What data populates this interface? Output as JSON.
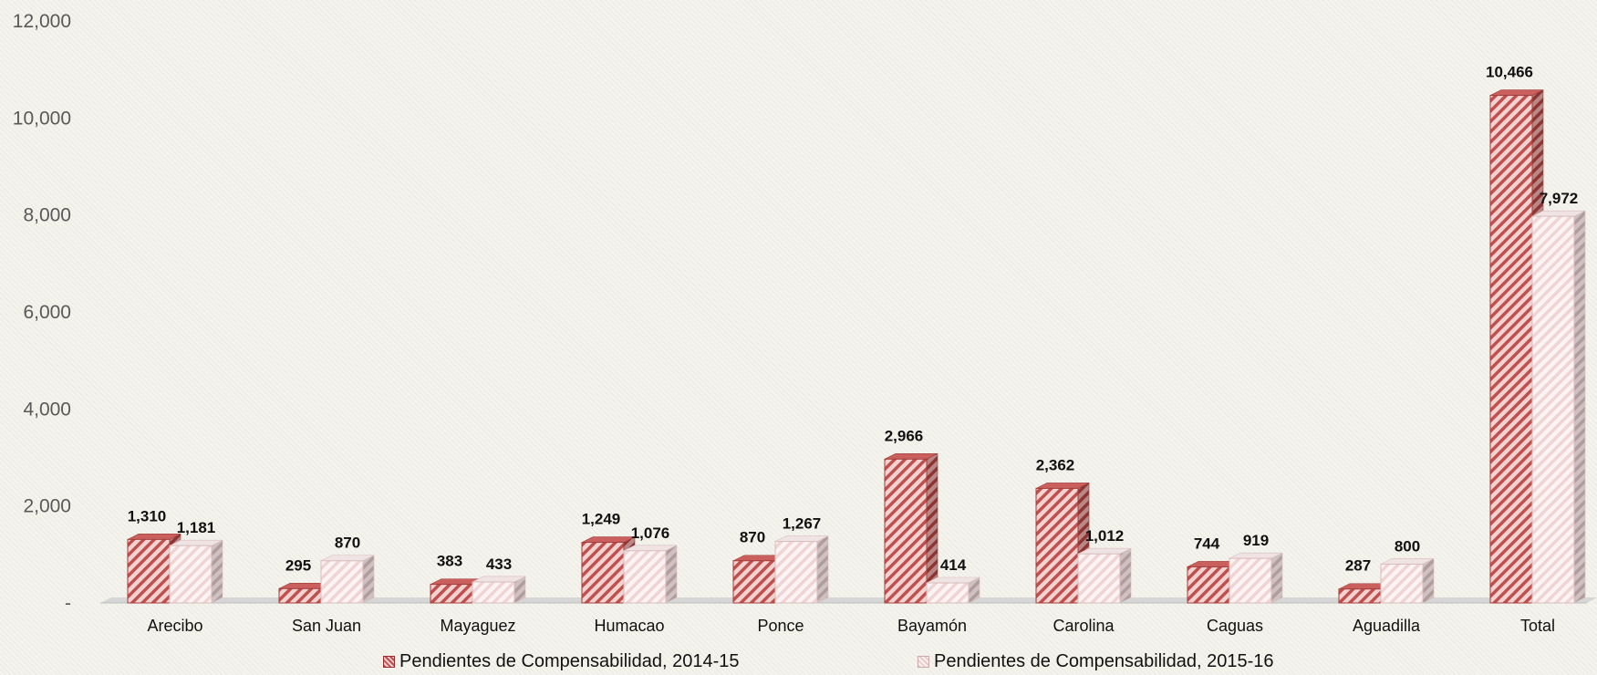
{
  "chart_data": {
    "type": "bar",
    "categories": [
      "Arecibo",
      "San Juan",
      "Mayaguez",
      "Humacao",
      "Ponce",
      "Bayamón",
      "Carolina",
      "Caguas",
      "Aguadilla",
      "Total"
    ],
    "series": [
      {
        "name": "Pendientes de Compensabilidad, 2014-15",
        "values": [
          1310,
          295,
          383,
          1249,
          870,
          2966,
          2362,
          744,
          287,
          10466
        ],
        "labels": [
          "1,310",
          "295",
          "383",
          "1,249",
          "870",
          "2,966",
          "2,362",
          "744",
          "287",
          "10,466"
        ],
        "color": "#c0504d"
      },
      {
        "name": "Pendientes de Compensabilidad, 2015-16",
        "values": [
          1181,
          870,
          433,
          1076,
          1267,
          414,
          1012,
          919,
          800,
          7972
        ],
        "labels": [
          "1,181",
          "870",
          "433",
          "1,076",
          "1,267",
          "414",
          "1,012",
          "919",
          "800",
          "7,972"
        ],
        "color": "#f2dcdb"
      }
    ],
    "ylim": [
      0,
      12000
    ],
    "yticks": [
      0,
      2000,
      4000,
      6000,
      8000,
      10000,
      12000
    ],
    "ytick_labels": [
      "-",
      "2,000",
      "4,000",
      "6,000",
      "8,000",
      "10,000",
      "12,000"
    ],
    "grid": false,
    "legend_position": "bottom"
  }
}
